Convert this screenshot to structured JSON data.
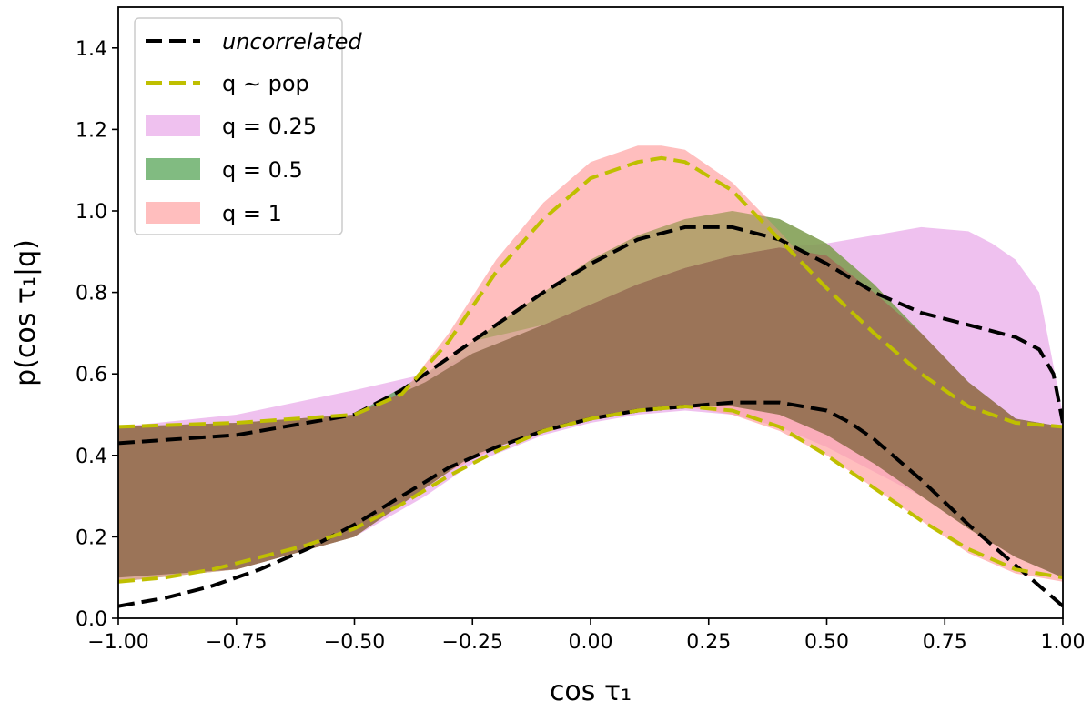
{
  "chart_data": {
    "type": "area",
    "xlabel": "cos τ₁",
    "ylabel": "p(cos τ₁|q)",
    "xlim": [
      -1.0,
      1.0
    ],
    "ylim": [
      0.0,
      1.5
    ],
    "xticks": [
      -1.0,
      -0.75,
      -0.5,
      -0.25,
      0.0,
      0.25,
      0.5,
      0.75,
      1.0
    ],
    "xtick_labels": [
      "−1.00",
      "−0.75",
      "−0.50",
      "−0.25",
      "0.00",
      "0.25",
      "0.50",
      "0.75",
      "1.00"
    ],
    "yticks": [
      0.0,
      0.2,
      0.4,
      0.6,
      0.8,
      1.0,
      1.2,
      1.4
    ],
    "ytick_labels": [
      "0.0",
      "0.2",
      "0.4",
      "0.6",
      "0.8",
      "1.0",
      "1.2",
      "1.4"
    ],
    "grid": false,
    "legend_position": "top-left",
    "bands": [
      {
        "name": "q = 0.25",
        "color": "#e8a6e8",
        "opacity": 0.7,
        "x": [
          -1.0,
          -0.75,
          -0.5,
          -0.35,
          -0.25,
          -0.1,
          0.0,
          0.1,
          0.2,
          0.3,
          0.4,
          0.5,
          0.6,
          0.7,
          0.8,
          0.85,
          0.9,
          0.95,
          1.0
        ],
        "lower": [
          0.1,
          0.12,
          0.2,
          0.3,
          0.38,
          0.45,
          0.48,
          0.5,
          0.51,
          0.5,
          0.47,
          0.42,
          0.36,
          0.3,
          0.25,
          0.22,
          0.2,
          0.15,
          0.1
        ],
        "upper": [
          0.47,
          0.5,
          0.56,
          0.6,
          0.65,
          0.72,
          0.77,
          0.82,
          0.86,
          0.89,
          0.91,
          0.92,
          0.94,
          0.96,
          0.95,
          0.92,
          0.88,
          0.8,
          0.5
        ]
      },
      {
        "name": "q = 0.5",
        "color": "#4c9e4c",
        "opacity": 0.7,
        "x": [
          -1.0,
          -0.75,
          -0.5,
          -0.35,
          -0.25,
          -0.1,
          0.0,
          0.1,
          0.2,
          0.3,
          0.4,
          0.5,
          0.6,
          0.7,
          0.8,
          0.9,
          1.0
        ],
        "lower": [
          0.09,
          0.12,
          0.2,
          0.32,
          0.4,
          0.46,
          0.49,
          0.51,
          0.52,
          0.52,
          0.5,
          0.45,
          0.38,
          0.3,
          0.22,
          0.15,
          0.1
        ],
        "upper": [
          0.47,
          0.48,
          0.5,
          0.6,
          0.68,
          0.8,
          0.88,
          0.94,
          0.98,
          1.0,
          0.98,
          0.92,
          0.82,
          0.7,
          0.58,
          0.49,
          0.47
        ]
      },
      {
        "name": "q = 1",
        "color": "#ffa2a2",
        "opacity": 0.7,
        "x": [
          -1.0,
          -0.75,
          -0.5,
          -0.4,
          -0.3,
          -0.2,
          -0.1,
          0.0,
          0.1,
          0.15,
          0.2,
          0.3,
          0.4,
          0.5,
          0.6,
          0.7,
          0.8,
          0.9,
          1.0
        ],
        "lower": [
          0.09,
          0.12,
          0.2,
          0.28,
          0.36,
          0.42,
          0.46,
          0.49,
          0.51,
          0.52,
          0.52,
          0.5,
          0.46,
          0.4,
          0.32,
          0.24,
          0.16,
          0.11,
          0.09
        ],
        "upper": [
          0.47,
          0.48,
          0.5,
          0.55,
          0.7,
          0.88,
          1.02,
          1.12,
          1.16,
          1.16,
          1.15,
          1.07,
          0.95,
          0.82,
          0.7,
          0.6,
          0.52,
          0.48,
          0.47
        ]
      }
    ],
    "overlap_region": {
      "name": "q = 0.25 ∩ q = 0.5 ∩ q = 1",
      "color": "#9b7458",
      "opacity": 1.0,
      "x": [
        -1.0,
        -0.75,
        -0.5,
        -0.35,
        -0.25,
        -0.1,
        0.0,
        0.1,
        0.2,
        0.3,
        0.4,
        0.5,
        0.6,
        0.7,
        0.8,
        0.9,
        1.0
      ],
      "lower": [
        0.1,
        0.12,
        0.2,
        0.32,
        0.4,
        0.46,
        0.49,
        0.51,
        0.52,
        0.52,
        0.5,
        0.45,
        0.38,
        0.3,
        0.22,
        0.15,
        0.1
      ],
      "upper": [
        0.47,
        0.48,
        0.5,
        0.58,
        0.65,
        0.72,
        0.77,
        0.82,
        0.86,
        0.89,
        0.91,
        0.89,
        0.8,
        0.7,
        0.58,
        0.49,
        0.47
      ]
    },
    "olive_tint_region": {
      "color": "#9a9a50",
      "opacity": 0.55,
      "x": [
        -0.25,
        -0.1,
        0.0,
        0.1,
        0.2,
        0.3,
        0.4,
        0.5,
        0.6,
        0.7
      ],
      "lower": [
        0.68,
        0.72,
        0.77,
        0.82,
        0.86,
        0.89,
        0.91,
        0.89,
        0.8,
        0.7
      ],
      "upper": [
        0.68,
        0.8,
        0.88,
        0.94,
        0.98,
        1.0,
        0.98,
        0.92,
        0.82,
        0.7
      ]
    },
    "series": [
      {
        "name": "uncorrelated",
        "style": "dashed",
        "color": "#000000",
        "width": 4,
        "segments": [
          {
            "x": [
              -1.0,
              -0.75,
              -0.5,
              -0.4,
              -0.3,
              -0.2,
              -0.1,
              0.0,
              0.1,
              0.2,
              0.3,
              0.4,
              0.5,
              0.6,
              0.7,
              0.8,
              0.9,
              0.95,
              0.98,
              1.0
            ],
            "y": [
              0.43,
              0.45,
              0.5,
              0.56,
              0.64,
              0.72,
              0.8,
              0.87,
              0.93,
              0.96,
              0.96,
              0.93,
              0.87,
              0.8,
              0.75,
              0.72,
              0.69,
              0.66,
              0.6,
              0.48
            ]
          },
          {
            "x": [
              -1.0,
              -0.9,
              -0.8,
              -0.7,
              -0.6,
              -0.5,
              -0.4,
              -0.3,
              -0.2,
              -0.1,
              0.0,
              0.1,
              0.2,
              0.3,
              0.4,
              0.5,
              0.55,
              0.6,
              0.7,
              0.8,
              0.9,
              0.95,
              1.0
            ],
            "y": [
              0.03,
              0.05,
              0.08,
              0.12,
              0.17,
              0.23,
              0.3,
              0.37,
              0.42,
              0.46,
              0.49,
              0.51,
              0.52,
              0.53,
              0.53,
              0.51,
              0.48,
              0.44,
              0.34,
              0.23,
              0.13,
              0.08,
              0.03
            ]
          }
        ]
      },
      {
        "name": "q ∼ pop",
        "style": "dashed",
        "color": "#bfbf00",
        "width": 4,
        "segments": [
          {
            "x": [
              -1.0,
              -0.75,
              -0.5,
              -0.4,
              -0.3,
              -0.2,
              -0.1,
              0.0,
              0.1,
              0.15,
              0.2,
              0.3,
              0.4,
              0.5,
              0.6,
              0.7,
              0.8,
              0.9,
              1.0
            ],
            "y": [
              0.47,
              0.48,
              0.5,
              0.55,
              0.68,
              0.85,
              0.98,
              1.08,
              1.12,
              1.13,
              1.12,
              1.05,
              0.93,
              0.81,
              0.7,
              0.6,
              0.52,
              0.48,
              0.47
            ]
          },
          {
            "x": [
              -1.0,
              -0.9,
              -0.8,
              -0.7,
              -0.6,
              -0.5,
              -0.4,
              -0.3,
              -0.2,
              -0.1,
              0.0,
              0.1,
              0.2,
              0.3,
              0.4,
              0.5,
              0.6,
              0.7,
              0.8,
              0.9,
              1.0
            ],
            "y": [
              0.09,
              0.1,
              0.12,
              0.15,
              0.18,
              0.22,
              0.28,
              0.35,
              0.41,
              0.46,
              0.49,
              0.51,
              0.52,
              0.51,
              0.47,
              0.4,
              0.32,
              0.24,
              0.17,
              0.12,
              0.1
            ]
          }
        ]
      }
    ],
    "legend": [
      {
        "kind": "line",
        "label_text": "uncorrelated",
        "color": "#000000",
        "italic": true
      },
      {
        "kind": "line",
        "label_text": "q ∼ pop",
        "color": "#bfbf00",
        "italic": false
      },
      {
        "kind": "patch",
        "label_text": "q = 0.25",
        "color": "#e8a6e8",
        "opacity": 0.7
      },
      {
        "kind": "patch",
        "label_text": "q = 0.5",
        "color": "#4c9e4c",
        "opacity": 0.7
      },
      {
        "kind": "patch",
        "label_text": "q = 1",
        "color": "#ffa2a2",
        "opacity": 0.7
      }
    ]
  }
}
